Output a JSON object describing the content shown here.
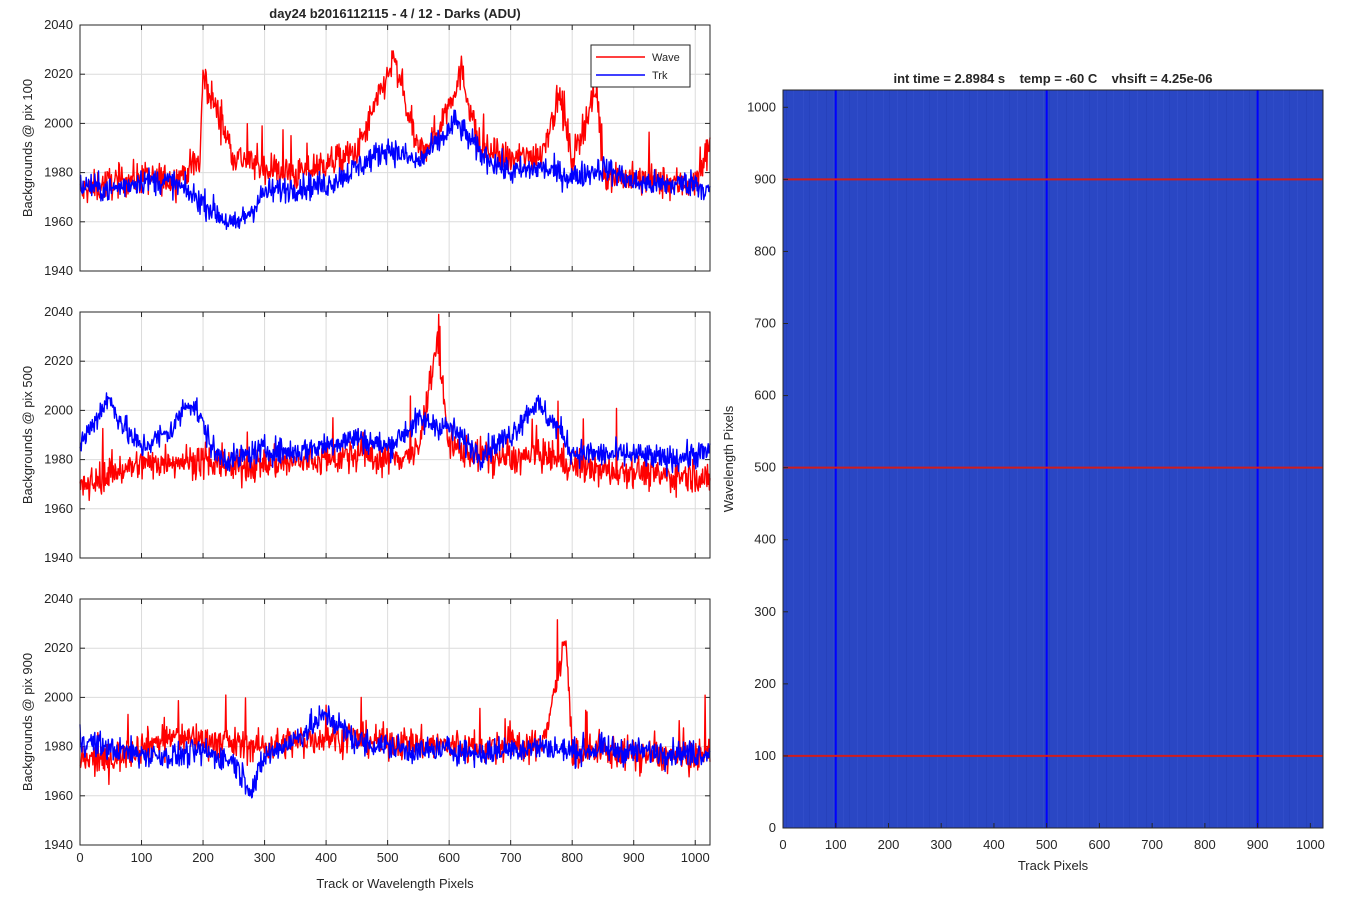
{
  "colors": {
    "wave": "#ff0000",
    "trk": "#0000ff",
    "image_bg": "#2a47c4",
    "grid": "#dcdcdc",
    "axis": "#262626"
  },
  "left_panel": {
    "title": "day24 b2016112115 - 4 / 12 - Darks (ADU)",
    "xlabel": "Track or Wavelength Pixels",
    "legend": {
      "wave": "Wave",
      "trk": "Trk"
    }
  },
  "right_panel": {
    "title": "int time = 2.8984 s    temp = -60 C    vhsift = 4.25e-06",
    "xlabel": "Track Pixels",
    "ylabel": "Wavelength Pixels"
  },
  "chart_data": [
    {
      "type": "line",
      "title": "day24 b2016112115 - 4 / 12 - Darks (ADU)",
      "xlabel": "",
      "ylabel": "Backgrounds @ pix 100",
      "xlim": [
        0,
        1024
      ],
      "ylim": [
        1940,
        2040
      ],
      "xticks": [
        0,
        100,
        200,
        300,
        400,
        500,
        600,
        700,
        800,
        900,
        1000
      ],
      "yticks": [
        1940,
        1960,
        1980,
        2000,
        2020,
        2040
      ],
      "legend": "top-right",
      "series": [
        {
          "name": "Wave",
          "x": [
            0,
            50,
            100,
            150,
            195,
            200,
            250,
            300,
            350,
            400,
            450,
            510,
            550,
            580,
            620,
            650,
            700,
            750,
            780,
            800,
            840,
            850,
            900,
            950,
            1000,
            1024
          ],
          "values": [
            1972,
            1976,
            1978,
            1977,
            1985,
            2020,
            1987,
            1982,
            1979,
            1984,
            1988,
            2026,
            1988,
            1996,
            2021,
            1990,
            1985,
            1988,
            2012,
            1985,
            2015,
            1980,
            1977,
            1976,
            1975,
            1993
          ]
        },
        {
          "name": "Trk",
          "x": [
            0,
            50,
            100,
            150,
            200,
            230,
            250,
            280,
            300,
            350,
            400,
            450,
            500,
            550,
            600,
            610,
            650,
            700,
            750,
            800,
            850,
            900,
            950,
            1000,
            1024
          ],
          "values": [
            1975,
            1973,
            1977,
            1976,
            1968,
            1962,
            1958,
            1965,
            1972,
            1974,
            1975,
            1982,
            1990,
            1984,
            1997,
            2001,
            1988,
            1980,
            1982,
            1978,
            1982,
            1976,
            1975,
            1976,
            1972
          ]
        }
      ]
    },
    {
      "type": "line",
      "ylabel": "Backgrounds @ pix 500",
      "xlim": [
        0,
        1024
      ],
      "ylim": [
        1940,
        2040
      ],
      "xticks": [
        0,
        100,
        200,
        300,
        400,
        500,
        600,
        700,
        800,
        900,
        1000
      ],
      "yticks": [
        1940,
        1960,
        1980,
        2000,
        2020,
        2040
      ],
      "series": [
        {
          "name": "Wave",
          "x": [
            0,
            50,
            100,
            150,
            200,
            250,
            300,
            350,
            400,
            450,
            500,
            550,
            580,
            600,
            650,
            700,
            750,
            800,
            850,
            900,
            950,
            1000,
            1024
          ],
          "values": [
            1968,
            1975,
            1978,
            1980,
            1979,
            1977,
            1978,
            1979,
            1980,
            1982,
            1980,
            1983,
            2029,
            1985,
            1982,
            1980,
            1982,
            1978,
            1975,
            1976,
            1973,
            1974,
            1970
          ]
        },
        {
          "name": "Trk",
          "x": [
            0,
            20,
            45,
            80,
            100,
            150,
            175,
            190,
            220,
            250,
            300,
            350,
            400,
            450,
            500,
            550,
            600,
            650,
            700,
            740,
            780,
            800,
            850,
            900,
            950,
            1000,
            1024
          ],
          "values": [
            1986,
            1994,
            2005,
            1990,
            1985,
            1992,
            2004,
            2000,
            1982,
            1980,
            1984,
            1983,
            1986,
            1989,
            1985,
            1996,
            1993,
            1982,
            1990,
            2003,
            1992,
            1983,
            1982,
            1982,
            1980,
            1982,
            1983
          ]
        }
      ]
    },
    {
      "type": "line",
      "ylabel": "Backgrounds @ pix 900",
      "xlabel": "Track or Wavelength Pixels",
      "xlim": [
        0,
        1024
      ],
      "ylim": [
        1940,
        2040
      ],
      "xticks": [
        0,
        100,
        200,
        300,
        400,
        500,
        600,
        700,
        800,
        900,
        1000
      ],
      "yticks": [
        1940,
        1960,
        1980,
        2000,
        2020,
        2040
      ],
      "series": [
        {
          "name": "Wave",
          "x": [
            0,
            50,
            100,
            150,
            200,
            250,
            300,
            350,
            400,
            450,
            500,
            550,
            600,
            650,
            700,
            750,
            790,
            800,
            850,
            900,
            950,
            1000,
            1024
          ],
          "values": [
            1974,
            1975,
            1980,
            1984,
            1983,
            1981,
            1980,
            1982,
            1984,
            1983,
            1982,
            1981,
            1980,
            1979,
            1981,
            1980,
            2023,
            1978,
            1978,
            1977,
            1976,
            1975,
            1978
          ]
        },
        {
          "name": "Trk",
          "x": [
            0,
            50,
            100,
            150,
            200,
            250,
            280,
            300,
            350,
            400,
            450,
            500,
            550,
            600,
            650,
            700,
            750,
            800,
            850,
            900,
            950,
            1000,
            1024
          ],
          "values": [
            1983,
            1979,
            1977,
            1976,
            1978,
            1974,
            1962,
            1976,
            1983,
            1993,
            1982,
            1980,
            1978,
            1979,
            1977,
            1979,
            1980,
            1978,
            1979,
            1978,
            1978,
            1977,
            1978
          ]
        }
      ]
    },
    {
      "type": "heatmap",
      "title": "int time = 2.8984 s    temp = -60 C    vhsift = 4.25e-06",
      "xlabel": "Track Pixels",
      "ylabel": "Wavelength Pixels",
      "xlim": [
        0,
        1024
      ],
      "ylim": [
        0,
        1024
      ],
      "xticks": [
        0,
        100,
        200,
        300,
        400,
        500,
        600,
        700,
        800,
        900,
        1000
      ],
      "yticks": [
        0,
        100,
        200,
        300,
        400,
        500,
        600,
        700,
        800,
        900,
        1000
      ],
      "vertical_markers": [
        100,
        500,
        900
      ],
      "horizontal_markers": [
        100,
        500,
        900
      ]
    }
  ]
}
